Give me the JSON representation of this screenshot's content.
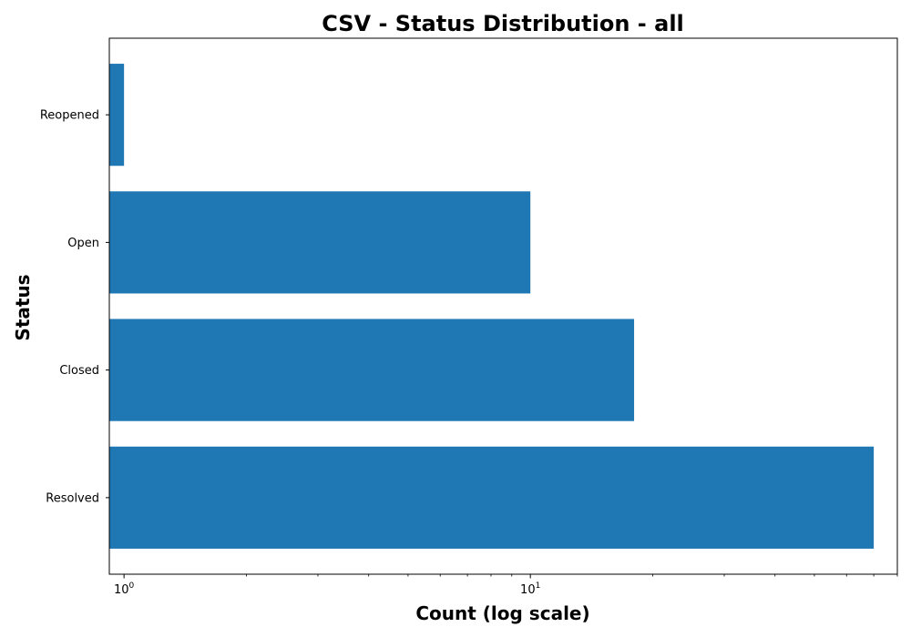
{
  "chart_data": {
    "type": "bar",
    "orientation": "horizontal",
    "title": "CSV - Status Distribution - all",
    "xlabel": "Count (log scale)",
    "ylabel": "Status",
    "x_scale": "log",
    "xlim": [
      0.92,
      80
    ],
    "categories": [
      "Resolved",
      "Closed",
      "Open",
      "Reopened"
    ],
    "values": [
      70,
      18,
      10,
      1
    ],
    "x_ticks": [
      {
        "value": 1,
        "base": "10",
        "exponent": "0"
      },
      {
        "value": 10,
        "base": "10",
        "exponent": "1"
      }
    ],
    "bar_color": "#1f77b4",
    "grid": false,
    "legend": "none"
  }
}
